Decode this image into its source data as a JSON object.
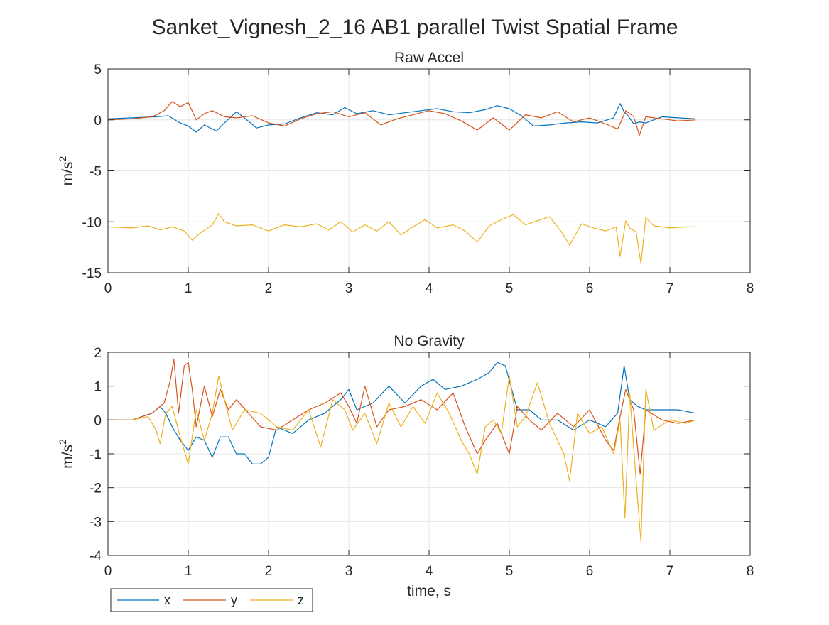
{
  "figure": {
    "title": "Sanket_Vignesh_2_16 AB1 parallel Twist Spatial Frame"
  },
  "colors": {
    "x": "#0072BD",
    "y": "#D95319",
    "z": "#EDB120",
    "grid": "#e6e6e6",
    "axis": "#262626"
  },
  "legend": {
    "placement": "bottom-left",
    "entries": [
      {
        "key": "x",
        "label": "x"
      },
      {
        "key": "y",
        "label": "y"
      },
      {
        "key": "z",
        "label": "z"
      }
    ]
  },
  "chart_data": [
    {
      "type": "line",
      "title": "Raw Accel",
      "xlabel": "",
      "ylabel": "m/s",
      "ylabel_sup": "2",
      "xlim": [
        0,
        8
      ],
      "ylim": [
        -15,
        5
      ],
      "xticks": [
        0,
        1,
        2,
        3,
        4,
        5,
        6,
        7,
        8
      ],
      "yticks": [
        -15,
        -10,
        -5,
        0,
        5
      ],
      "grid": true,
      "series": [
        {
          "key": "x",
          "x": [
            0,
            0.3,
            0.6,
            0.75,
            0.9,
            1.0,
            1.1,
            1.2,
            1.35,
            1.45,
            1.6,
            1.7,
            1.85,
            2.0,
            2.2,
            2.4,
            2.6,
            2.8,
            2.95,
            3.1,
            3.3,
            3.5,
            3.7,
            3.9,
            4.1,
            4.3,
            4.5,
            4.7,
            4.85,
            5.0,
            5.15,
            5.3,
            5.5,
            5.7,
            5.9,
            6.1,
            6.3,
            6.38,
            6.43,
            6.48,
            6.55,
            6.62,
            6.7,
            6.9,
            7.1,
            7.32
          ],
          "y": [
            0.1,
            0.2,
            0.3,
            0.4,
            -0.3,
            -0.6,
            -1.2,
            -0.5,
            -1.1,
            -0.3,
            0.8,
            0.2,
            -0.8,
            -0.5,
            -0.4,
            0.2,
            0.7,
            0.5,
            1.2,
            0.6,
            0.9,
            0.5,
            0.7,
            0.9,
            1.1,
            0.8,
            0.7,
            1.0,
            1.4,
            1.1,
            0.4,
            -0.6,
            -0.5,
            -0.3,
            -0.2,
            -0.3,
            0.2,
            1.6,
            0.8,
            0.4,
            -0.4,
            -0.2,
            -0.3,
            0.3,
            0.2,
            0.1
          ]
        },
        {
          "key": "y",
          "x": [
            0,
            0.3,
            0.55,
            0.7,
            0.8,
            0.9,
            1.0,
            1.1,
            1.2,
            1.3,
            1.45,
            1.6,
            1.8,
            2.0,
            2.2,
            2.4,
            2.6,
            2.8,
            3.0,
            3.2,
            3.4,
            3.6,
            3.8,
            4.0,
            4.2,
            4.4,
            4.6,
            4.8,
            5.0,
            5.2,
            5.4,
            5.6,
            5.8,
            6.0,
            6.2,
            6.35,
            6.45,
            6.55,
            6.62,
            6.7,
            6.9,
            7.1,
            7.32
          ],
          "y": [
            0.0,
            0.1,
            0.3,
            0.9,
            1.8,
            1.3,
            1.7,
            0.0,
            0.6,
            0.9,
            0.3,
            0.2,
            0.4,
            -0.3,
            -0.6,
            0.1,
            0.6,
            0.8,
            0.3,
            0.7,
            -0.5,
            0.1,
            0.5,
            0.9,
            0.6,
            -0.1,
            -1.0,
            0.2,
            -1.0,
            0.5,
            0.2,
            0.8,
            -0.2,
            0.2,
            -0.4,
            -0.9,
            0.9,
            0.3,
            -1.5,
            0.3,
            0.1,
            -0.1,
            0.0
          ]
        },
        {
          "key": "z",
          "x": [
            0,
            0.3,
            0.5,
            0.65,
            0.8,
            0.95,
            1.05,
            1.15,
            1.3,
            1.38,
            1.45,
            1.6,
            1.8,
            2.0,
            2.2,
            2.4,
            2.6,
            2.75,
            2.9,
            3.05,
            3.2,
            3.35,
            3.5,
            3.65,
            3.8,
            3.95,
            4.1,
            4.3,
            4.45,
            4.6,
            4.75,
            4.9,
            5.05,
            5.2,
            5.35,
            5.5,
            5.65,
            5.75,
            5.9,
            6.05,
            6.2,
            6.33,
            6.38,
            6.45,
            6.5,
            6.58,
            6.64,
            6.7,
            6.8,
            7.0,
            7.2,
            7.32
          ],
          "y": [
            -10.5,
            -10.6,
            -10.4,
            -10.8,
            -10.5,
            -10.9,
            -11.8,
            -11.1,
            -10.3,
            -9.2,
            -10.0,
            -10.4,
            -10.3,
            -10.9,
            -10.3,
            -10.5,
            -10.2,
            -10.8,
            -10.0,
            -11.0,
            -10.3,
            -10.9,
            -10.0,
            -11.3,
            -10.5,
            -9.8,
            -10.6,
            -10.3,
            -10.9,
            -12.0,
            -10.4,
            -9.8,
            -9.3,
            -10.3,
            -9.9,
            -9.5,
            -11.0,
            -12.3,
            -10.2,
            -10.6,
            -10.9,
            -10.5,
            -13.4,
            -9.9,
            -10.6,
            -11.0,
            -14.1,
            -9.6,
            -10.4,
            -10.6,
            -10.5,
            -10.5
          ]
        }
      ]
    },
    {
      "type": "line",
      "title": "No Gravity",
      "xlabel": "time, s",
      "ylabel": "m/s",
      "ylabel_sup": "2",
      "xlim": [
        0,
        8
      ],
      "ylim": [
        -4,
        2
      ],
      "xticks": [
        0,
        1,
        2,
        3,
        4,
        5,
        6,
        7,
        8
      ],
      "yticks": [
        -4,
        -3,
        -2,
        -1,
        0,
        1,
        2
      ],
      "grid": true,
      "series": [
        {
          "key": "x",
          "x": [
            0,
            0.3,
            0.55,
            0.65,
            0.72,
            0.8,
            0.9,
            1.0,
            1.1,
            1.2,
            1.3,
            1.4,
            1.5,
            1.6,
            1.7,
            1.8,
            1.9,
            2.0,
            2.1,
            2.3,
            2.5,
            2.7,
            2.9,
            3.0,
            3.1,
            3.3,
            3.5,
            3.7,
            3.9,
            4.05,
            4.2,
            4.4,
            4.6,
            4.75,
            4.85,
            4.95,
            5.1,
            5.25,
            5.4,
            5.6,
            5.8,
            6.0,
            6.2,
            6.35,
            6.43,
            6.5,
            6.6,
            6.7,
            6.9,
            7.1,
            7.32
          ],
          "y": [
            0.0,
            0.0,
            0.2,
            0.4,
            0.2,
            -0.2,
            -0.6,
            -0.9,
            -0.5,
            -0.6,
            -1.1,
            -0.5,
            -0.5,
            -1.0,
            -1.0,
            -1.3,
            -1.3,
            -1.1,
            -0.2,
            -0.4,
            0.0,
            0.2,
            0.6,
            0.9,
            0.3,
            0.5,
            1.0,
            0.5,
            1.0,
            1.2,
            0.9,
            1.0,
            1.2,
            1.4,
            1.7,
            1.6,
            0.3,
            0.3,
            0.0,
            0.0,
            -0.3,
            0.0,
            -0.2,
            0.2,
            1.6,
            0.6,
            0.4,
            0.3,
            0.3,
            0.3,
            0.2
          ]
        },
        {
          "key": "y",
          "x": [
            0,
            0.3,
            0.55,
            0.7,
            0.78,
            0.82,
            0.88,
            0.95,
            1.0,
            1.05,
            1.1,
            1.2,
            1.3,
            1.4,
            1.5,
            1.6,
            1.75,
            1.9,
            2.1,
            2.3,
            2.5,
            2.7,
            2.9,
            3.0,
            3.1,
            3.2,
            3.35,
            3.5,
            3.7,
            3.9,
            4.1,
            4.3,
            4.45,
            4.6,
            4.7,
            4.85,
            5.0,
            5.1,
            5.25,
            5.4,
            5.6,
            5.8,
            6.0,
            6.2,
            6.3,
            6.38,
            6.45,
            6.55,
            6.63,
            6.7,
            6.9,
            7.1,
            7.32
          ],
          "y": [
            0.0,
            0.0,
            0.2,
            0.5,
            1.2,
            1.8,
            0.2,
            1.6,
            1.7,
            0.9,
            -0.2,
            1.0,
            0.1,
            0.9,
            0.3,
            0.6,
            0.2,
            -0.2,
            -0.3,
            0.0,
            0.3,
            0.5,
            0.8,
            0.4,
            -0.1,
            1.0,
            -0.2,
            0.3,
            0.4,
            0.6,
            0.3,
            0.8,
            -0.2,
            -1.0,
            -0.6,
            -0.1,
            -1.0,
            0.4,
            0.0,
            -0.3,
            0.2,
            -0.2,
            0.3,
            -0.6,
            -0.9,
            0.1,
            0.9,
            0.3,
            -1.6,
            0.3,
            0.0,
            -0.1,
            0.0
          ]
        },
        {
          "key": "z",
          "x": [
            0,
            0.3,
            0.5,
            0.6,
            0.65,
            0.72,
            0.8,
            0.9,
            1.0,
            1.1,
            1.2,
            1.3,
            1.38,
            1.45,
            1.55,
            1.7,
            1.9,
            2.1,
            2.3,
            2.5,
            2.65,
            2.8,
            2.95,
            3.05,
            3.2,
            3.35,
            3.5,
            3.65,
            3.8,
            3.95,
            4.1,
            4.25,
            4.4,
            4.5,
            4.6,
            4.7,
            4.8,
            4.9,
            5.0,
            5.1,
            5.2,
            5.35,
            5.5,
            5.62,
            5.68,
            5.75,
            5.85,
            6.0,
            6.15,
            6.3,
            6.38,
            6.44,
            6.5,
            6.57,
            6.64,
            6.7,
            6.8,
            7.0,
            7.2,
            7.32
          ],
          "y": [
            0.0,
            0.0,
            0.1,
            -0.3,
            -0.7,
            0.2,
            0.4,
            -0.5,
            -1.3,
            0.3,
            -0.6,
            0.2,
            1.3,
            0.6,
            -0.3,
            0.3,
            0.2,
            -0.2,
            -0.3,
            0.3,
            -0.8,
            0.6,
            0.3,
            -0.3,
            0.2,
            -0.7,
            0.5,
            -0.2,
            0.4,
            -0.1,
            0.8,
            0.2,
            -0.6,
            -1.0,
            -1.6,
            -0.2,
            0.0,
            -0.4,
            1.3,
            -0.2,
            0.1,
            1.1,
            -0.1,
            -0.7,
            -1.0,
            -1.8,
            0.2,
            -0.4,
            -0.2,
            -1.0,
            0.0,
            -2.9,
            0.8,
            -1.5,
            -3.6,
            0.9,
            -0.3,
            0.0,
            -0.1,
            0.0
          ]
        }
      ]
    }
  ]
}
